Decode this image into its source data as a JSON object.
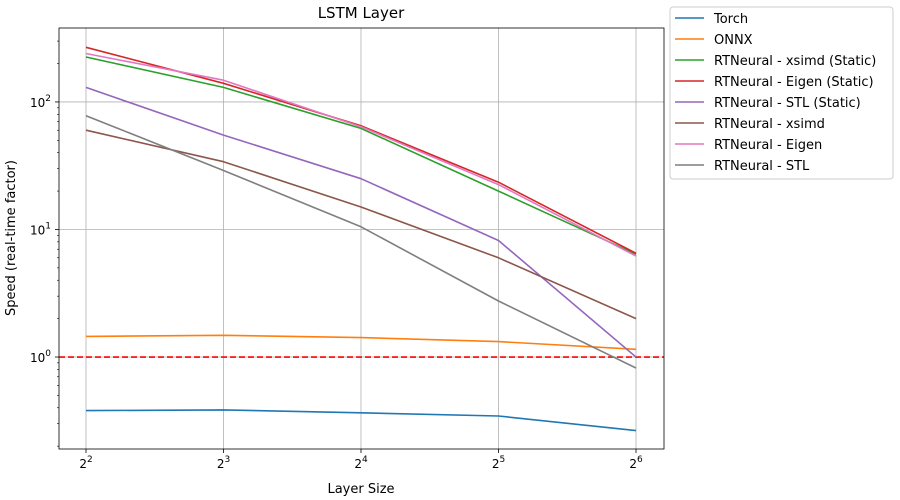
{
  "chart_data": {
    "type": "line",
    "title": "LSTM Layer",
    "xlabel": "Layer Size",
    "ylabel": "Speed (real-time factor)",
    "x": [
      4,
      8,
      16,
      32,
      64
    ],
    "x_scale": "log2",
    "y_scale": "log10",
    "x_tick_labels": [
      {
        "base": "2",
        "exp": "2"
      },
      {
        "base": "2",
        "exp": "3"
      },
      {
        "base": "2",
        "exp": "4"
      },
      {
        "base": "2",
        "exp": "5"
      },
      {
        "base": "2",
        "exp": "6"
      }
    ],
    "y_tick_labels": [
      {
        "value": 1,
        "base": "10",
        "exp": "0"
      },
      {
        "value": 10,
        "base": "10",
        "exp": "1"
      },
      {
        "value": 100,
        "base": "10",
        "exp": "2"
      }
    ],
    "ylim": [
      0.19,
      380
    ],
    "grid": true,
    "reference_line": {
      "y": 1.0,
      "color": "#ff0000",
      "style": "dashed"
    },
    "legend_position": "outside-top-right",
    "series": [
      {
        "name": "Torch",
        "color": "#1f77b4",
        "values": [
          0.38,
          0.385,
          0.365,
          0.345,
          0.265
        ]
      },
      {
        "name": "ONNX",
        "color": "#ff7f0e",
        "values": [
          1.45,
          1.48,
          1.42,
          1.32,
          1.15
        ]
      },
      {
        "name": "RTNeural - xsimd (Static)",
        "color": "#2ca02c",
        "values": [
          225,
          130,
          62,
          20,
          6.4
        ]
      },
      {
        "name": "RTNeural - Eigen (Static)",
        "color": "#d62728",
        "values": [
          268,
          140,
          65,
          23.5,
          6.5
        ]
      },
      {
        "name": "RTNeural - STL (Static)",
        "color": "#9467bd",
        "values": [
          130,
          55,
          25,
          8.2,
          1.0
        ]
      },
      {
        "name": "RTNeural - xsimd",
        "color": "#8c564b",
        "values": [
          60,
          34,
          15,
          6.0,
          2.0
        ]
      },
      {
        "name": "RTNeural - Eigen",
        "color": "#e377c2",
        "values": [
          240,
          148,
          64,
          22.5,
          6.2
        ]
      },
      {
        "name": "RTNeural - STL",
        "color": "#7f7f7f",
        "values": [
          78,
          29,
          10.5,
          2.75,
          0.82
        ]
      }
    ]
  }
}
